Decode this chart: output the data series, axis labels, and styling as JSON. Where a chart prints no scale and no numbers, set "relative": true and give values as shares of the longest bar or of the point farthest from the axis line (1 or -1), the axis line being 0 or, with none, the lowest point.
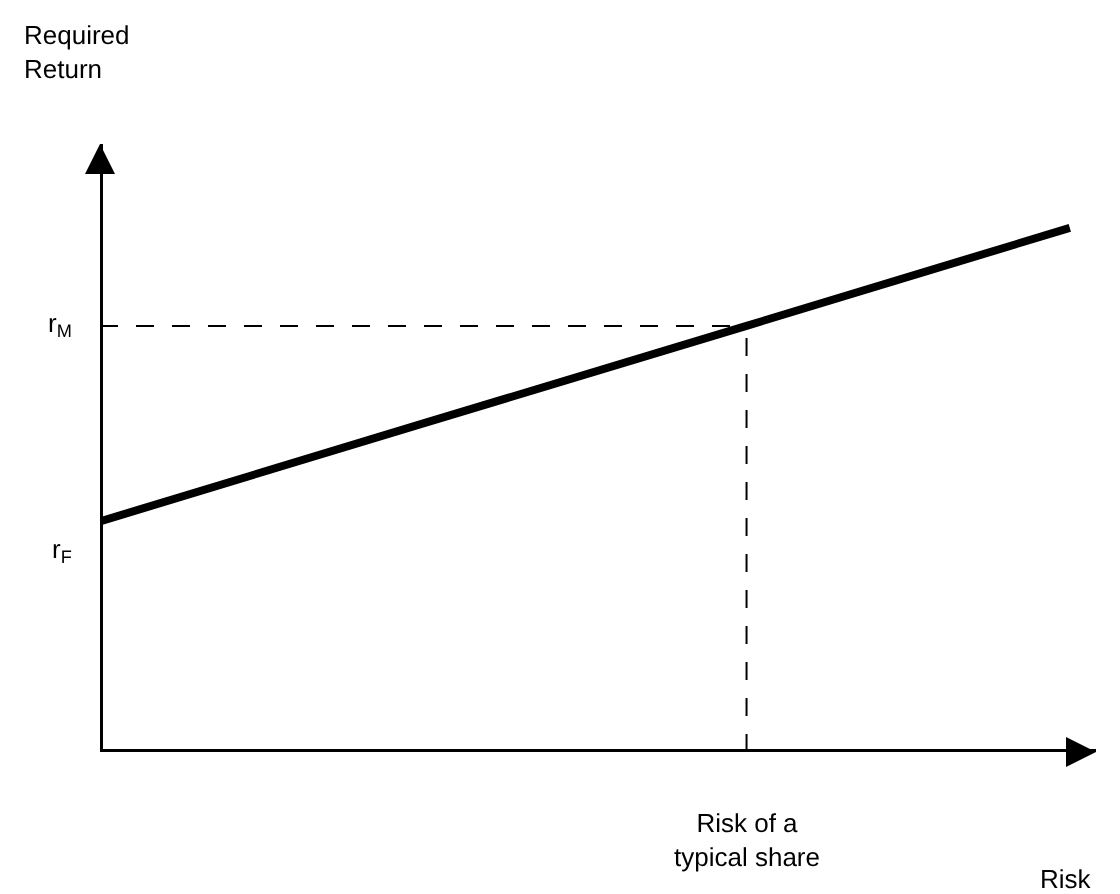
{
  "chart_data": {
    "type": "line",
    "relative": true,
    "xlabel": "Risk",
    "categories": [
      null,
      null,
      null,
      null
    ],
    "series": [
      {
        "color": "#000000",
        "values": [
          0.44,
          0.627,
          0.813,
          1
        ]
      }
    ],
    "ref_lines": [
      {
        "axis": "y",
        "value": 0.813,
        "label": "r$_{M}$",
        "line_style": "dashed",
        "color": "#000000"
      }
    ],
    "annotations": [
      "r$_{F}$",
      "Risk of a\ntypical share",
      "Required\nReturn"
    ],
    "marker": "none",
    "line_style": "solid"
  }
}
